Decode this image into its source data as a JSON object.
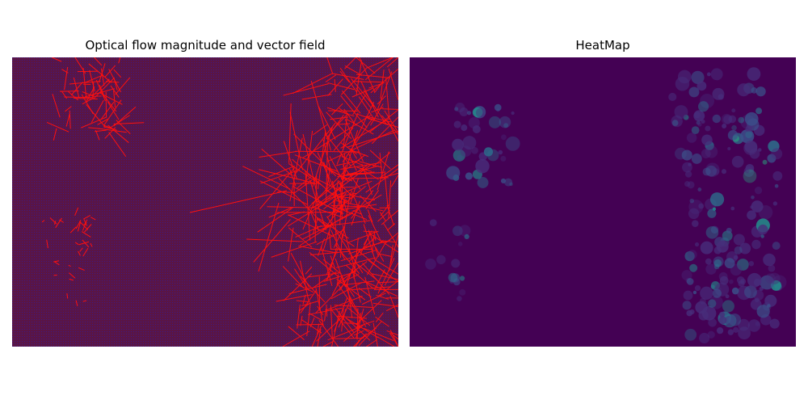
{
  "figure": {
    "panels": [
      {
        "title": "Optical flow magnitude and vector field",
        "image": "optical-flow-vector-field",
        "background_color": "#5a1545",
        "grid_dot_color": "#3a1a8a",
        "arrow_color": "#ff0000"
      },
      {
        "title": "HeatMap",
        "image": "optical-flow-heatmap",
        "background_color": "#440154",
        "colormap": "viridis"
      }
    ]
  }
}
